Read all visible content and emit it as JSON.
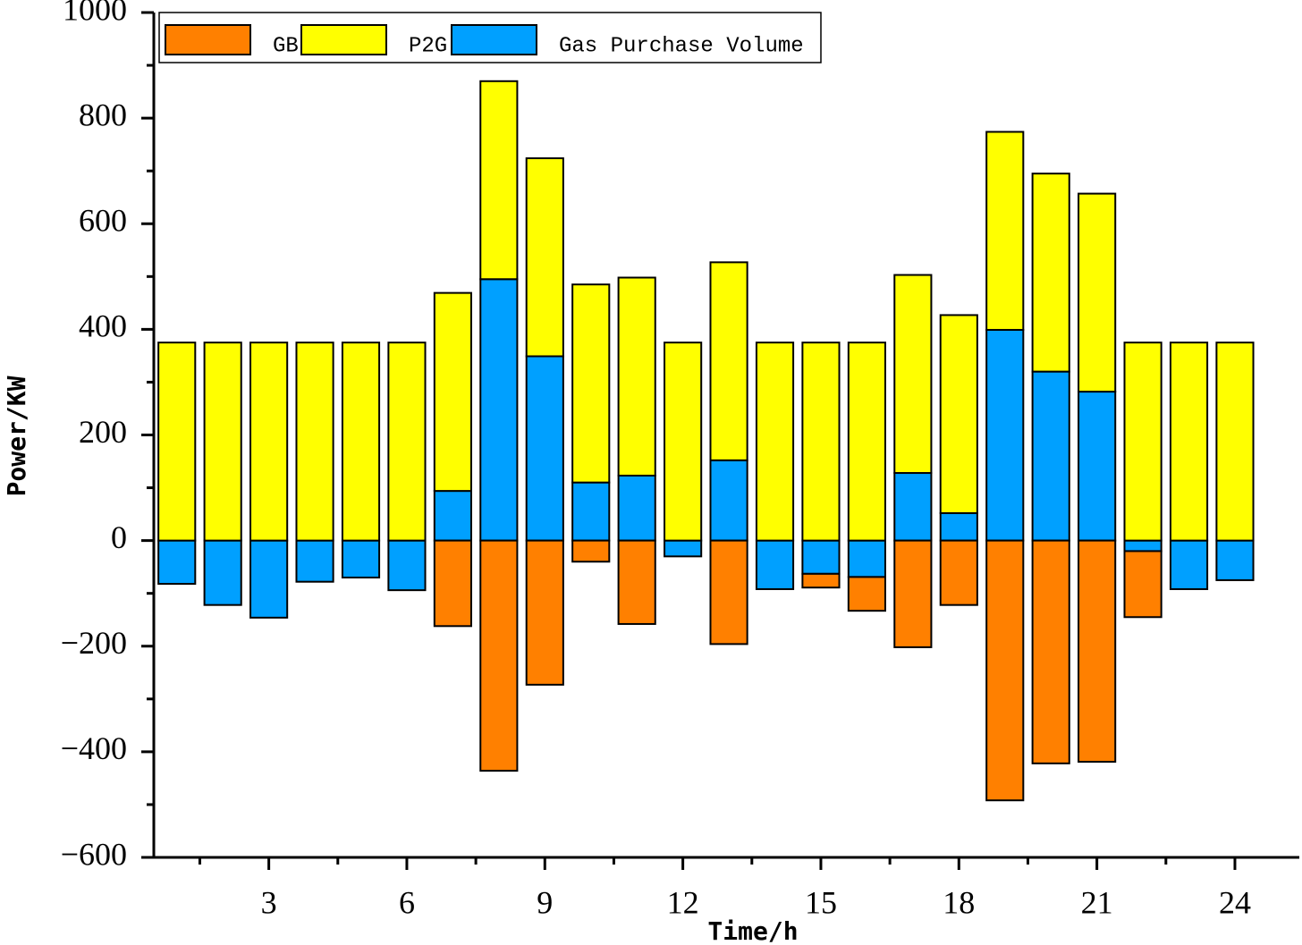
{
  "chart_data": {
    "type": "bar",
    "xlabel": "Time/h",
    "ylabel": "Power/KW",
    "x": [
      1,
      2,
      3,
      4,
      5,
      6,
      7,
      8,
      9,
      10,
      11,
      12,
      13,
      14,
      15,
      16,
      17,
      18,
      19,
      20,
      21,
      22,
      23,
      24
    ],
    "series": [
      {
        "name": "GB",
        "color": "#ff8000",
        "values": [
          0,
          0,
          0,
          0,
          0,
          0,
          -162,
          -436,
          -273,
          -40,
          -158,
          0,
          -196,
          0,
          -26,
          -64,
          -202,
          -122,
          -492,
          -422,
          -419,
          -125,
          0,
          0
        ]
      },
      {
        "name": "P2G",
        "color": "#ffff00",
        "values": [
          375,
          375,
          375,
          375,
          375,
          375,
          375,
          375,
          375,
          375,
          375,
          375,
          375,
          375,
          375,
          375,
          375,
          375,
          375,
          375,
          375,
          375,
          375,
          375
        ]
      },
      {
        "name": "Gas Purchase Volume",
        "color": "#00a0ff",
        "values": [
          -82,
          -122,
          -146,
          -78,
          -70,
          -94,
          94,
          495,
          349,
          110,
          123,
          -30,
          152,
          -92,
          -63,
          -69,
          128,
          52,
          399,
          320,
          282,
          -20,
          -92,
          -75
        ]
      }
    ],
    "xlim": [
      0.5,
      25.4
    ],
    "xticks": [
      3,
      6,
      9,
      12,
      15,
      18,
      21,
      24
    ],
    "ylim": [
      -600,
      1000
    ],
    "yticks": [
      {
        "value": -600,
        "label": "−600"
      },
      {
        "value": -400,
        "label": "−400"
      },
      {
        "value": -200,
        "label": "−200"
      },
      0,
      200,
      400,
      600,
      800,
      1000
    ],
    "legend": "upper left"
  }
}
